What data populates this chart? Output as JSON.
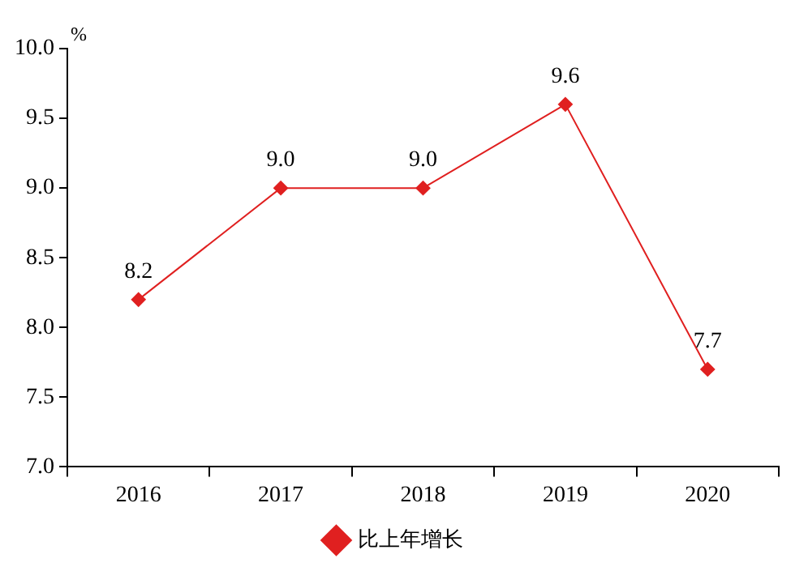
{
  "chart_data": {
    "type": "line",
    "ylabel": "%",
    "categories": [
      "2016",
      "2017",
      "2018",
      "2019",
      "2020"
    ],
    "series": [
      {
        "name": "比上年增长",
        "color": "#e02020",
        "values": [
          8.2,
          9.0,
          9.0,
          9.6,
          7.7
        ],
        "value_labels": [
          "8.2",
          "9.0",
          "9.0",
          "9.6",
          "7.7"
        ]
      }
    ],
    "ylim": [
      7,
      10
    ],
    "yticks": [
      {
        "value": 7,
        "label": "7.0"
      },
      {
        "value": 7.5,
        "label": "7.5"
      },
      {
        "value": 8,
        "label": "8.0"
      },
      {
        "value": 8.5,
        "label": "8.5"
      },
      {
        "value": 9,
        "label": "9.0"
      },
      {
        "value": 9.5,
        "label": "9.5"
      },
      {
        "value": 10,
        "label": "10.0"
      }
    ],
    "grid": false,
    "legend": "bottom",
    "marker": "diamond",
    "line_style": "solid"
  }
}
